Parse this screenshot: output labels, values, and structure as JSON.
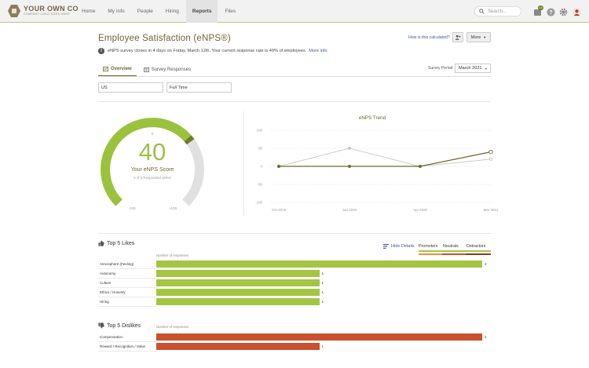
{
  "header": {
    "logo_main": "YOUR OWN CO",
    "logo_sub": "COMPANY LOGO GOES HERE",
    "nav": [
      "Home",
      "My Info",
      "People",
      "Hiring",
      "Reports",
      "Files"
    ],
    "active_nav": "Reports",
    "search_placeholder": "Search...",
    "inbox_badge": "10"
  },
  "page": {
    "title": "Employee Satisfaction (eNPS®)",
    "how_calculated": "How is this calculated?",
    "more_label": "More",
    "info_text": "eNPS survey closes in 4 days on Friday, March 12th. Your current response rate is 49% of employees.",
    "info_link": "More info",
    "tabs": [
      "Overview",
      "Survey Responses"
    ],
    "survey_period_label": "Survey Period",
    "survey_period_value": "March 2021",
    "filters": [
      "US",
      "Full Time"
    ]
  },
  "gauge": {
    "score": "40",
    "label": "Your eNPS Score",
    "responded": "5 of 6 Responded (83%)",
    "min_label": "-100",
    "max_label": "+100",
    "zero_label": "0",
    "score_value": 40,
    "color_fill": "#9bc23c",
    "color_dark": "#6e7e22",
    "color_track": "#e0e0e0"
  },
  "chart_data": [
    {
      "type": "line",
      "title": "eNPS Trend",
      "categories": [
        "Oct 2019",
        "Jan 2020",
        "Apr 2020",
        "Mar 2021"
      ],
      "x_positions": [
        0,
        1,
        2,
        3
      ],
      "series": [
        {
          "values": [
            0,
            0,
            0,
            40
          ],
          "color": "#6e6a2e"
        },
        {
          "values": [
            0,
            50,
            0,
            20
          ],
          "color": "#c8c8c8"
        }
      ],
      "ylim": [
        -100,
        100
      ],
      "yticks": [
        100,
        50,
        0,
        -50,
        -100
      ],
      "grid": true
    },
    {
      "type": "bar",
      "title": "Top 5 Likes",
      "orientation": "horizontal",
      "axis_label": "Number of responses",
      "categories": [
        "Atmosphere (Feeling)",
        "Autonomy",
        "Culture",
        "Ethics / Honesty",
        "Hiring"
      ],
      "values": [
        2,
        1,
        1,
        1,
        1
      ],
      "xlim": [
        0,
        2
      ],
      "color": "#a3c542"
    },
    {
      "type": "bar",
      "title": "Top 5 Dislikes",
      "orientation": "horizontal",
      "axis_label": "Number of responses",
      "categories": [
        "Compensation",
        "Reward / Recognition / Value"
      ],
      "values": [
        2,
        1
      ],
      "xlim": [
        0,
        2
      ],
      "color": "#c9512d"
    }
  ],
  "details": {
    "hide_details": "Hide Details",
    "legend": [
      "Promoters",
      "Neutrals",
      "Detractors"
    ],
    "promoter_color": "#a3c542",
    "neutral_color": "#e8923a",
    "detractor_color": "#8c3b22"
  }
}
